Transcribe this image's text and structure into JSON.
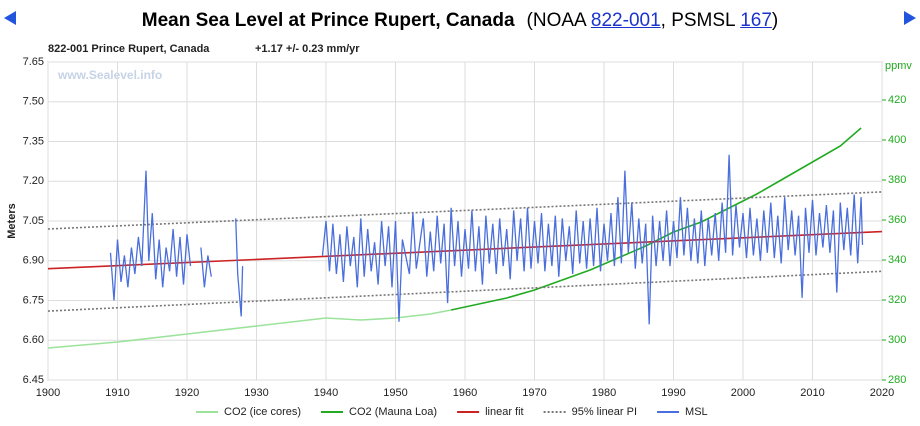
{
  "header": {
    "title": "Mean Sea Level at Prince Rupert, Canada",
    "note_parts": [
      "(NOAA",
      "822-001",
      ", PSMSL",
      "167",
      ")"
    ]
  },
  "chart_data": {
    "type": "line",
    "subtitle": "822-001 Prince Rupert, Canada",
    "trend": "+1.17 +/- 0.23 mm/yr",
    "watermark": "www.Sealevel.info",
    "ylabel": "Meters",
    "y2label": "ppmv",
    "xlim": [
      1900,
      2020
    ],
    "xticks": [
      1900,
      1910,
      1920,
      1930,
      1940,
      1950,
      1960,
      1970,
      1980,
      1990,
      2000,
      2010,
      2020
    ],
    "ylim": [
      6.45,
      7.65
    ],
    "yticks": [
      {
        "value": 6.45,
        "label": "6.45"
      },
      {
        "value": 6.6,
        "label": "6.60"
      },
      {
        "value": 6.75,
        "label": "6.75"
      },
      {
        "value": 6.9,
        "label": "6.90"
      },
      {
        "value": 7.05,
        "label": "7.05"
      },
      {
        "value": 7.2,
        "label": "7.20"
      },
      {
        "value": 7.35,
        "label": "7.35"
      },
      {
        "value": 7.5,
        "label": "7.50"
      },
      {
        "value": 7.65,
        "label": "7.65"
      }
    ],
    "y2lim": [
      280,
      439
    ],
    "y2ticks": [
      280,
      300,
      320,
      340,
      360,
      380,
      400,
      420
    ],
    "grid": true,
    "legend": "bottom",
    "series": [
      {
        "name": "CO2 (ice cores)",
        "color": "#9be39b",
        "axis": "y2",
        "x": [
          1900,
          1910,
          1920,
          1930,
          1940,
          1945,
          1950,
          1955,
          1958
        ],
        "values": [
          296,
          299,
          303,
          307,
          311,
          310,
          311,
          313,
          315
        ]
      },
      {
        "name": "CO2 (Mauna Loa)",
        "color": "#22aa22",
        "axis": "y2",
        "x": [
          1958,
          1962,
          1966,
          1970,
          1974,
          1978,
          1982,
          1986,
          1990,
          1994,
          1998,
          2002,
          2006,
          2010,
          2014,
          2017
        ],
        "values": [
          315,
          318,
          321,
          325,
          330,
          335,
          341,
          347,
          354,
          359,
          366,
          373,
          381,
          389,
          397,
          406
        ]
      },
      {
        "name": "linear fit",
        "color": "#cc2222",
        "x": [
          1900,
          2020
        ],
        "values": [
          6.87,
          7.01
        ]
      },
      {
        "name": "95% linear PI",
        "color": "#777777",
        "dash": "2,2",
        "x": [
          1900,
          2020
        ],
        "values": [
          7.02,
          7.16
        ],
        "lower": [
          6.71,
          6.86
        ]
      },
      {
        "name": "MSL",
        "color": "#4a6fdc",
        "x": [
          1909,
          1909.5,
          1910,
          1910.5,
          1911,
          1911.5,
          1912,
          1912.5,
          1913,
          1913.5,
          1914.1,
          1914.5,
          1915,
          1915.5,
          1916,
          1916.5,
          1917,
          1917.5,
          1918,
          1918.5,
          1919,
          1919.5,
          1920,
          1920.5,
          1921,
          1922,
          1922.5,
          1923,
          1923.5,
          1926,
          1927,
          1927.3,
          1927.8,
          1928,
          1933,
          1939.5,
          1940,
          1940.5,
          1941,
          1941.5,
          1942,
          1942.5,
          1943,
          1943.5,
          1944,
          1944.5,
          1945,
          1945.5,
          1946,
          1946.5,
          1947,
          1947.5,
          1948,
          1948.5,
          1949,
          1949.5,
          1950,
          1950.5,
          1951,
          1952,
          1952.5,
          1953,
          1954,
          1954.5,
          1955,
          1955.5,
          1956,
          1956.5,
          1957,
          1957.5,
          1958,
          1958.5,
          1959,
          1959.5,
          1960,
          1960.5,
          1961,
          1961.5,
          1962,
          1962.5,
          1963,
          1963.5,
          1964,
          1964.5,
          1965,
          1965.5,
          1966,
          1966.5,
          1967,
          1967.5,
          1968,
          1968.5,
          1969,
          1969.5,
          1970,
          1970.5,
          1971,
          1971.5,
          1972,
          1972.5,
          1973,
          1973.5,
          1974,
          1974.5,
          1975,
          1975.5,
          1976,
          1976.5,
          1977,
          1977.5,
          1978,
          1978.5,
          1979,
          1979.5,
          1980,
          1980.5,
          1981,
          1981.5,
          1982,
          1982.5,
          1983,
          1983.5,
          1984,
          1984.5,
          1985,
          1985.5,
          1986,
          1986.5,
          1987,
          1987.5,
          1988,
          1988.5,
          1989,
          1989.5,
          1990,
          1990.5,
          1991,
          1991.5,
          1992,
          1992.5,
          1993,
          1993.5,
          1994,
          1994.5,
          1995,
          1995.5,
          1996,
          1996.5,
          1997,
          1997.5,
          1998,
          1998.5,
          1999,
          1999.5,
          2000,
          2000.5,
          2001,
          2001.5,
          2002,
          2002.5,
          2003,
          2003.5,
          2004,
          2004.5,
          2005,
          2005.5,
          2006,
          2006.5,
          2007,
          2007.5,
          2008,
          2008.5,
          2009,
          2009.5,
          2010,
          2010.5,
          2011,
          2011.5,
          2012,
          2012.5,
          2013,
          2013.5,
          2014,
          2014.5,
          2015,
          2015.5,
          2016,
          2016.5,
          2017,
          2017.2
        ],
        "values": [
          6.93,
          6.75,
          6.98,
          6.82,
          6.92,
          6.8,
          6.95,
          6.85,
          6.99,
          6.88,
          7.24,
          6.9,
          7.08,
          6.83,
          6.98,
          6.8,
          6.95,
          6.86,
          7.02,
          6.84,
          6.99,
          6.81,
          7.0,
          6.88,
          null,
          6.95,
          6.8,
          6.92,
          6.84,
          null,
          7.06,
          6.85,
          6.69,
          6.88,
          null,
          6.92,
          7.05,
          6.86,
          7.04,
          6.85,
          7.0,
          6.82,
          7.03,
          6.88,
          6.99,
          6.8,
          7.06,
          6.84,
          7.02,
          6.86,
          6.97,
          6.81,
          7.05,
          6.88,
          7.03,
          6.8,
          7.05,
          6.67,
          6.98,
          6.85,
          7.08,
          6.87,
          7.06,
          6.84,
          7.01,
          6.86,
          7.07,
          6.89,
          7.04,
          6.74,
          7.1,
          6.88,
          7.05,
          6.84,
          7.02,
          6.87,
          7.09,
          6.86,
          7.03,
          6.81,
          7.07,
          6.89,
          7.04,
          6.85,
          7.06,
          6.88,
          7.02,
          6.83,
          7.09,
          6.9,
          7.06,
          6.86,
          7.1,
          6.87,
          7.05,
          6.89,
          7.08,
          6.86,
          7.04,
          6.88,
          7.07,
          6.84,
          7.06,
          6.9,
          7.03,
          6.85,
          7.09,
          6.89,
          7.05,
          6.87,
          7.06,
          6.88,
          7.1,
          6.86,
          7.04,
          6.9,
          7.08,
          6.88,
          7.14,
          6.89,
          7.24,
          6.93,
          7.12,
          6.87,
          7.06,
          6.89,
          7.04,
          6.66,
          7.07,
          6.88,
          7.05,
          6.9,
          7.09,
          6.88,
          7.05,
          6.91,
          7.14,
          6.92,
          7.1,
          6.9,
          7.06,
          6.89,
          7.09,
          6.88,
          7.06,
          6.92,
          7.08,
          6.9,
          7.12,
          6.93,
          7.3,
          6.92,
          7.11,
          6.95,
          7.08,
          6.91,
          7.1,
          6.92,
          7.06,
          6.9,
          7.09,
          6.93,
          7.12,
          6.91,
          7.07,
          6.89,
          7.14,
          6.94,
          7.09,
          6.92,
          7.07,
          6.76,
          7.1,
          6.93,
          7.13,
          6.92,
          7.08,
          6.95,
          7.11,
          6.93,
          7.09,
          6.78,
          7.12,
          6.94,
          7.1,
          6.92,
          7.15,
          6.89,
          7.14,
          6.96
        ]
      }
    ]
  }
}
